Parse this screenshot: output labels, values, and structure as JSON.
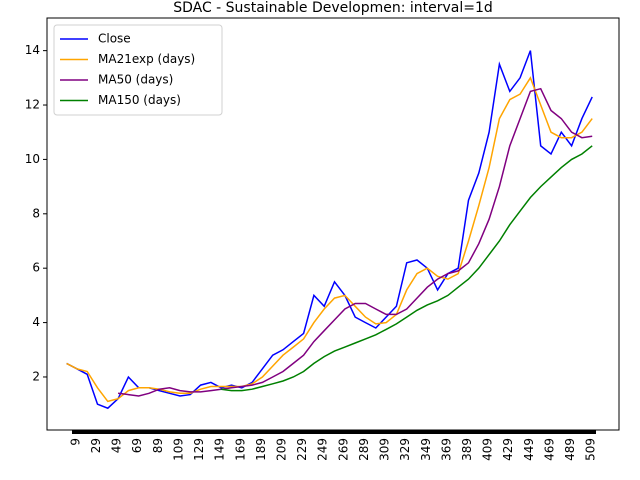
{
  "chart_data": {
    "type": "line",
    "title": "SDAC - Sustainable Developmen: interval=1d",
    "x": [
      0,
      10,
      20,
      30,
      40,
      50,
      60,
      70,
      80,
      90,
      100,
      110,
      120,
      130,
      140,
      150,
      160,
      170,
      180,
      190,
      200,
      210,
      220,
      230,
      240,
      250,
      260,
      270,
      280,
      290,
      300,
      310,
      320,
      330,
      340,
      350,
      360,
      370,
      380,
      390,
      400,
      410,
      420,
      430,
      440,
      450,
      460,
      470,
      480,
      490,
      500,
      510
    ],
    "series": [
      {
        "name": "Close",
        "color": "#0000ff",
        "values": [
          2.5,
          2.3,
          2.1,
          1.0,
          0.85,
          1.2,
          2.0,
          1.6,
          1.6,
          1.5,
          1.4,
          1.3,
          1.35,
          1.7,
          1.8,
          1.6,
          1.7,
          1.6,
          1.8,
          2.3,
          2.8,
          3.0,
          3.3,
          3.6,
          5.0,
          4.6,
          5.5,
          5.0,
          4.2,
          4.0,
          3.8,
          4.2,
          4.6,
          6.2,
          6.3,
          6.0,
          5.2,
          5.8,
          6.0,
          8.5,
          9.5,
          11.0,
          13.5,
          12.5,
          13.0,
          14.0,
          10.5,
          10.2,
          11.0,
          10.5,
          11.5,
          12.3
        ]
      },
      {
        "name": "MA21exp (days)",
        "color": "#ffa500",
        "values": [
          2.5,
          2.3,
          2.2,
          1.6,
          1.1,
          1.2,
          1.5,
          1.6,
          1.6,
          1.55,
          1.45,
          1.4,
          1.4,
          1.55,
          1.65,
          1.65,
          1.65,
          1.65,
          1.75,
          2.0,
          2.4,
          2.8,
          3.1,
          3.4,
          4.0,
          4.5,
          4.9,
          5.0,
          4.6,
          4.2,
          3.95,
          4.0,
          4.3,
          5.2,
          5.8,
          6.0,
          5.7,
          5.6,
          5.8,
          7.0,
          8.3,
          9.7,
          11.5,
          12.2,
          12.4,
          13.0,
          12.0,
          11.0,
          10.8,
          10.8,
          11.0,
          11.5
        ]
      },
      {
        "name": "MA50 (days)",
        "color": "#800080",
        "values": [
          null,
          null,
          null,
          null,
          null,
          1.4,
          1.35,
          1.3,
          1.4,
          1.55,
          1.6,
          1.5,
          1.45,
          1.45,
          1.5,
          1.55,
          1.6,
          1.65,
          1.7,
          1.8,
          2.0,
          2.2,
          2.5,
          2.8,
          3.3,
          3.7,
          4.1,
          4.5,
          4.7,
          4.7,
          4.5,
          4.3,
          4.3,
          4.5,
          4.9,
          5.3,
          5.6,
          5.8,
          5.9,
          6.2,
          6.9,
          7.8,
          9.0,
          10.5,
          11.5,
          12.5,
          12.6,
          11.8,
          11.5,
          11.0,
          10.8,
          10.85
        ]
      },
      {
        "name": "MA150 (days)",
        "color": "#008000",
        "values": [
          null,
          null,
          null,
          null,
          null,
          null,
          null,
          null,
          null,
          null,
          null,
          null,
          null,
          null,
          null,
          1.55,
          1.5,
          1.5,
          1.55,
          1.65,
          1.75,
          1.85,
          2.0,
          2.2,
          2.5,
          2.75,
          2.95,
          3.1,
          3.25,
          3.4,
          3.55,
          3.75,
          3.95,
          4.2,
          4.45,
          4.65,
          4.8,
          5.0,
          5.3,
          5.6,
          6.0,
          6.5,
          7.0,
          7.6,
          8.1,
          8.6,
          9.0,
          9.35,
          9.7,
          10.0,
          10.2,
          10.5
        ]
      }
    ],
    "xlim": [
      -19,
      536
    ],
    "ylim": [
      0.05,
      15.2
    ],
    "xticks": [
      9,
      29,
      49,
      69,
      89,
      109,
      129,
      149,
      169,
      189,
      209,
      229,
      249,
      269,
      289,
      309,
      329,
      349,
      369,
      389,
      409,
      429,
      449,
      469,
      489,
      509
    ],
    "yticks": [
      2,
      4,
      6,
      8,
      10,
      12,
      14
    ],
    "legend": "upper left"
  }
}
